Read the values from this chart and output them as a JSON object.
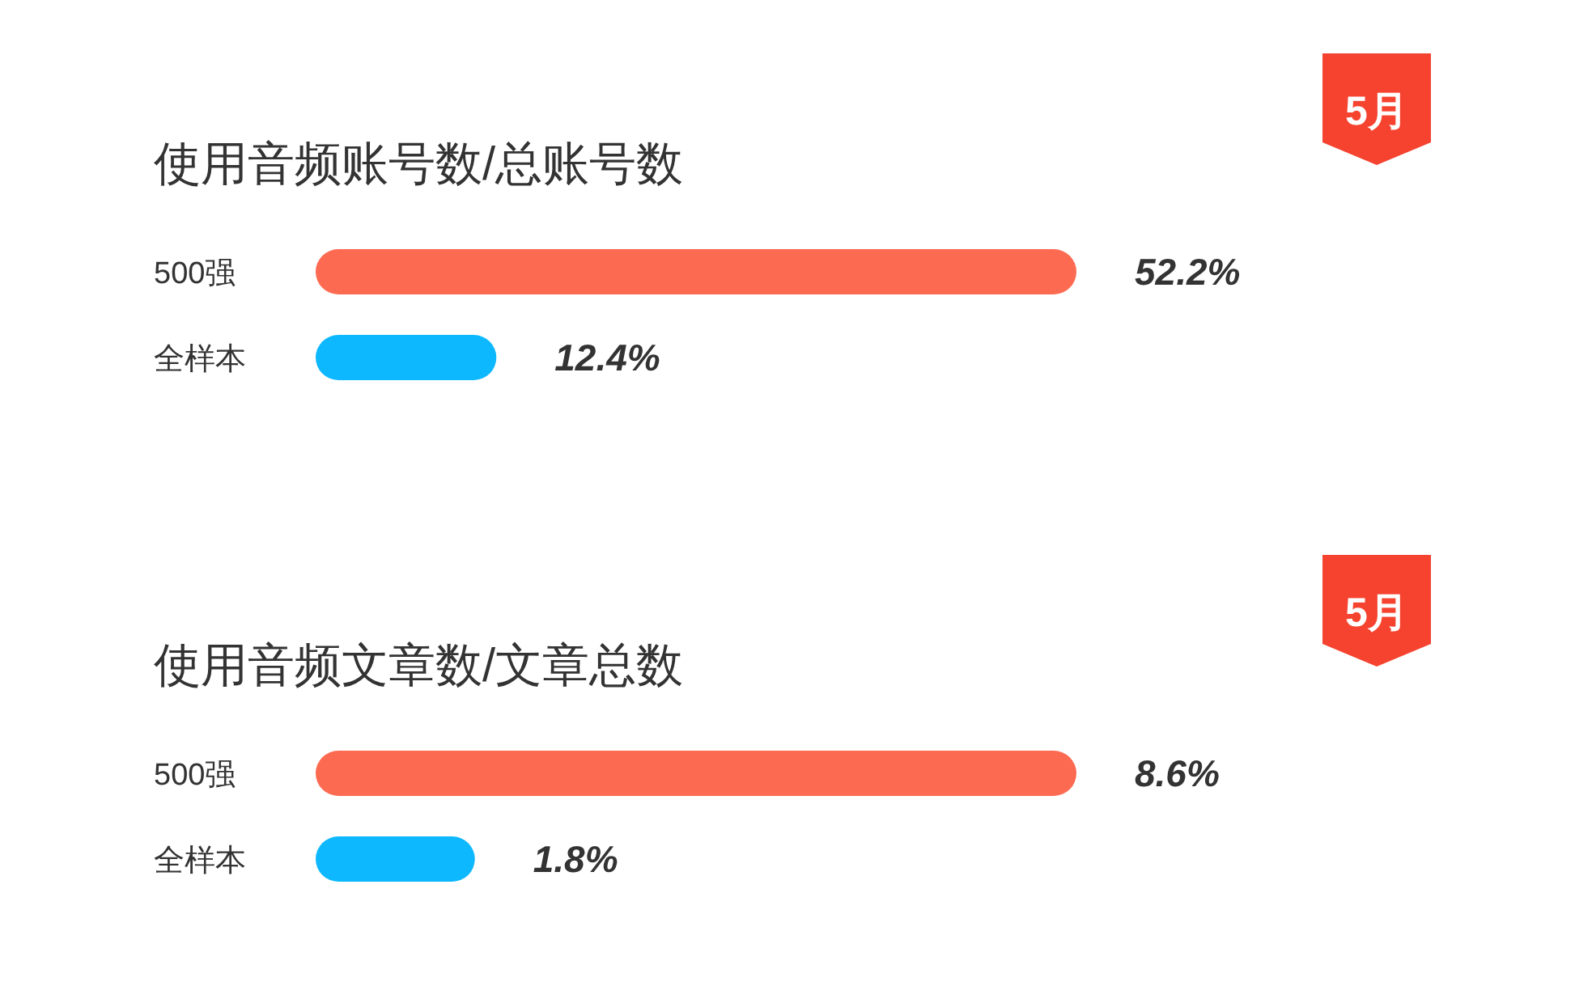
{
  "chart_data": [
    {
      "type": "bar",
      "orientation": "horizontal",
      "title": "使用音频账号数/总账号数",
      "categories": [
        "500强",
        "全样本"
      ],
      "values": [
        52.2,
        12.4
      ],
      "value_labels": [
        "52.2%",
        "12.4%"
      ],
      "colors": [
        "#fd6a52",
        "#0db8ff"
      ],
      "annotations": [
        "5月"
      ]
    },
    {
      "type": "bar",
      "orientation": "horizontal",
      "title": "使用音频文章数/文章总数",
      "categories": [
        "500强",
        "全样本"
      ],
      "values": [
        8.6,
        1.8
      ],
      "value_labels": [
        "8.6%",
        "1.8%"
      ],
      "colors": [
        "#fd6a52",
        "#0db8ff"
      ],
      "annotations": [
        "5月"
      ]
    }
  ]
}
